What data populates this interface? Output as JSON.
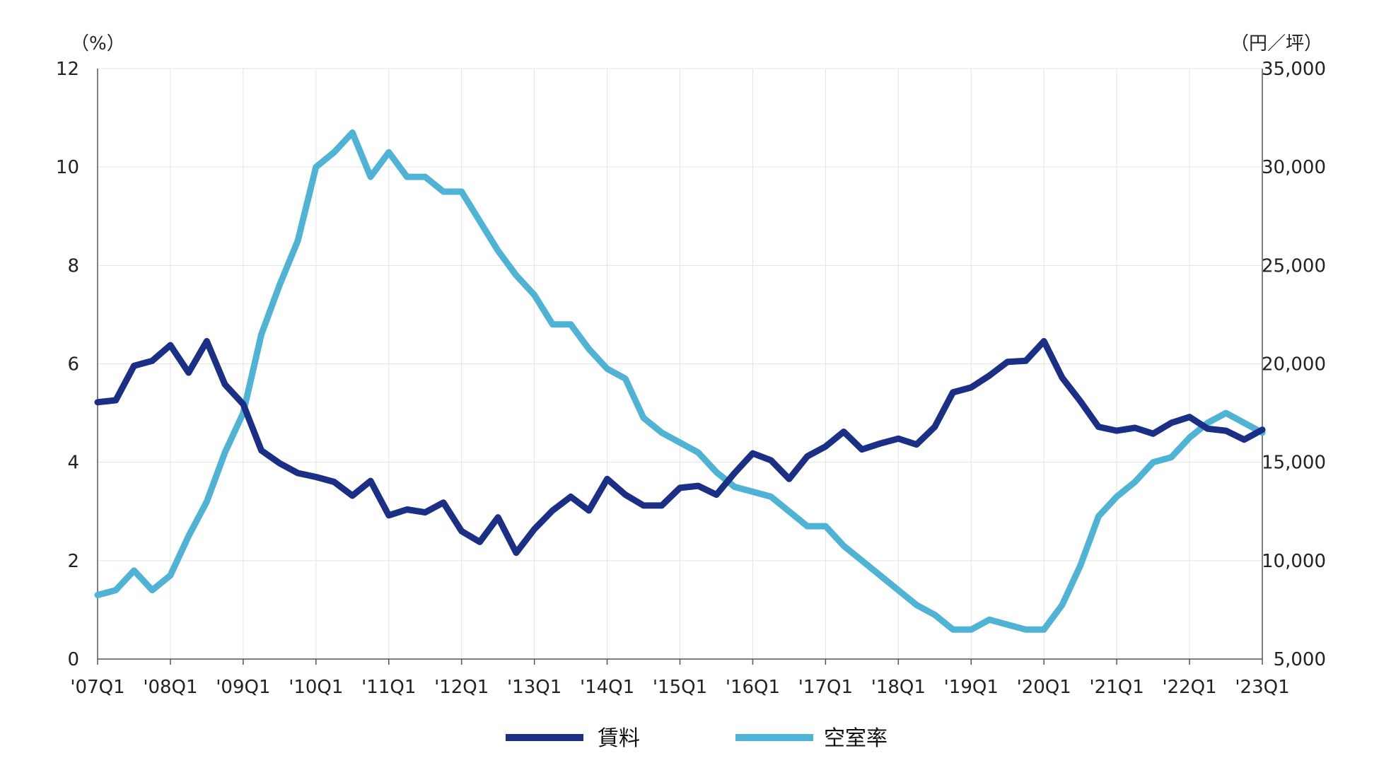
{
  "chart_data": {
    "type": "line",
    "title": "",
    "left_axis": {
      "unit_label": "（%）",
      "min": 0,
      "max": 12,
      "ticks": [
        "0",
        "2",
        "4",
        "6",
        "8",
        "10",
        "12"
      ]
    },
    "right_axis": {
      "unit_label": "（円／坪）",
      "min": 5000,
      "max": 35000,
      "ticks": [
        "5,000",
        "10,000",
        "15,000",
        "20,000",
        "25,000",
        "30,000",
        "35,000"
      ]
    },
    "x_labels": [
      "'07Q1",
      "'08Q1",
      "'09Q1",
      "'10Q1",
      "'11Q1",
      "'12Q1",
      "'13Q1",
      "'14Q1",
      "'15Q1",
      "'16Q1",
      "'17Q1",
      "'18Q1",
      "'19Q1",
      "'20Q1",
      "'21Q1",
      "'22Q1",
      "'23Q1"
    ],
    "quarters_count": 65,
    "grid": true,
    "legend_position": "bottom",
    "series": [
      {
        "name": "賃料",
        "axis": "right",
        "color": "#1b2f86",
        "values": [
          18050,
          18150,
          19900,
          20150,
          20950,
          19550,
          21150,
          18950,
          17950,
          15600,
          14950,
          14450,
          14250,
          14000,
          13300,
          14050,
          12300,
          12600,
          12450,
          12950,
          11500,
          10950,
          12200,
          10400,
          11600,
          12550,
          13250,
          12550,
          14150,
          13350,
          12800,
          12800,
          13700,
          13800,
          13350,
          14450,
          15450,
          15100,
          14150,
          15300,
          15800,
          16550,
          15650,
          15950,
          16200,
          15900,
          16800,
          18550,
          18800,
          19400,
          20100,
          20150,
          21150,
          19300,
          18100,
          16800,
          16600,
          16750,
          16450,
          17000,
          17300,
          16700,
          16600,
          16150,
          16650
        ]
      },
      {
        "name": "空室率",
        "axis": "left",
        "color": "#4fb3d5",
        "values": [
          1.3,
          1.4,
          1.8,
          1.4,
          1.7,
          2.5,
          3.2,
          4.2,
          5.0,
          6.6,
          7.6,
          8.5,
          10.0,
          10.3,
          10.7,
          9.8,
          10.3,
          9.8,
          9.8,
          9.5,
          9.5,
          8.9,
          8.3,
          7.8,
          7.4,
          6.8,
          6.8,
          6.3,
          5.9,
          5.7,
          4.9,
          4.6,
          4.4,
          4.2,
          3.8,
          3.5,
          3.4,
          3.3,
          3.0,
          2.7,
          2.7,
          2.3,
          2.0,
          1.7,
          1.4,
          1.1,
          0.9,
          0.6,
          0.6,
          0.8,
          0.7,
          0.6,
          0.6,
          1.1,
          1.9,
          2.9,
          3.3,
          3.6,
          4.0,
          4.1,
          4.5,
          4.8,
          5.0,
          4.8,
          4.6
        ]
      }
    ]
  }
}
